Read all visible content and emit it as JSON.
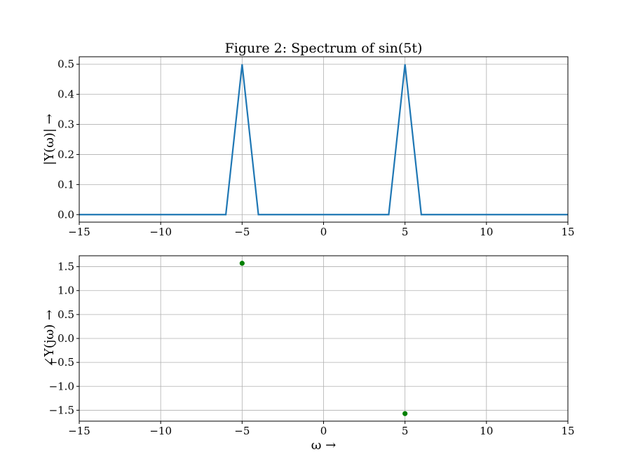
{
  "chart_data": [
    {
      "type": "line",
      "title": "Figure 2: Spectrum of sin(5t)",
      "xlabel": "",
      "ylabel": "|Y(ω)| →",
      "xlim": [
        -15,
        15
      ],
      "ylim": [
        -0.025,
        0.525
      ],
      "xticks": [
        -15,
        -10,
        -5,
        0,
        5,
        10,
        15
      ],
      "xtick_labels": [
        "−15",
        "−10",
        "−5",
        "0",
        "5",
        "10",
        "15"
      ],
      "yticks": [
        0.0,
        0.1,
        0.2,
        0.3,
        0.4,
        0.5
      ],
      "ytick_labels": [
        "0.0",
        "0.1",
        "0.2",
        "0.3",
        "0.4",
        "0.5"
      ],
      "grid": true,
      "series": [
        {
          "color": "#1f77b4",
          "x": [
            -15,
            -6,
            -5,
            -4,
            4,
            5,
            6,
            15
          ],
          "y": [
            0,
            0,
            0.5,
            0,
            0,
            0.5,
            0,
            0
          ]
        }
      ]
    },
    {
      "type": "scatter",
      "title": "",
      "xlabel": "ω →",
      "ylabel": "∠Y(jω) →",
      "xlim": [
        -15,
        15
      ],
      "ylim": [
        -1.728,
        1.728
      ],
      "xticks": [
        -15,
        -10,
        -5,
        0,
        5,
        10,
        15
      ],
      "xtick_labels": [
        "−15",
        "−10",
        "−5",
        "0",
        "5",
        "10",
        "15"
      ],
      "yticks": [
        -1.5,
        -1.0,
        -0.5,
        0.0,
        0.5,
        1.0,
        1.5
      ],
      "ytick_labels": [
        "−1.5",
        "−1.0",
        "−0.5",
        "0.0",
        "0.5",
        "1.0",
        "1.5"
      ],
      "grid": true,
      "series": [
        {
          "color": "#008000",
          "x": [
            -5,
            5
          ],
          "y": [
            1.5708,
            -1.5708
          ]
        }
      ]
    }
  ]
}
